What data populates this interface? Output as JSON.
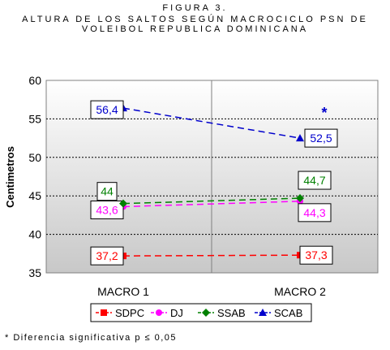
{
  "header": {
    "figure_label": "FIGURA 3.",
    "title_line": "ALTURA DE LOS SALTOS SEGÚN MACROCICLO PSN DE VOLEIBOL REPUBLICA DOMINICANA"
  },
  "footnote": "* Diferencia significativa p ≤ 0,05",
  "chart_data": {
    "type": "line",
    "title": "FIGURA 3. ALTURA DE LOS SALTOS SEGÚN MACROCICLO PSN DE VOLEIBOL REPUBLICA DOMINICANA",
    "xlabel": "",
    "ylabel": "Centimetros",
    "categories": [
      "MACRO 1",
      "MACRO 2"
    ],
    "ylim": [
      35,
      60
    ],
    "yticks": [
      35,
      40,
      45,
      50,
      55,
      60
    ],
    "grid": true,
    "legend": "bottom",
    "series": [
      {
        "name": "SDPC",
        "values": [
          37.2,
          37.3
        ],
        "labels": [
          "37,2",
          "37,3"
        ],
        "color": "#ff0000",
        "marker": "square"
      },
      {
        "name": "DJ",
        "values": [
          43.6,
          44.3
        ],
        "labels": [
          "43,6",
          "44,3"
        ],
        "color": "#ff00ff",
        "marker": "circle"
      },
      {
        "name": "SSAB",
        "values": [
          44,
          44.7
        ],
        "labels": [
          "44",
          "44,7"
        ],
        "color": "#008000",
        "marker": "diamond"
      },
      {
        "name": "SCAB",
        "values": [
          56.4,
          52.5
        ],
        "labels": [
          "56,4",
          "52,5"
        ],
        "color": "#0000cc",
        "marker": "triangle"
      }
    ],
    "annotations": [
      {
        "text": "*",
        "series": "SCAB",
        "category": "MACRO 2"
      }
    ]
  }
}
